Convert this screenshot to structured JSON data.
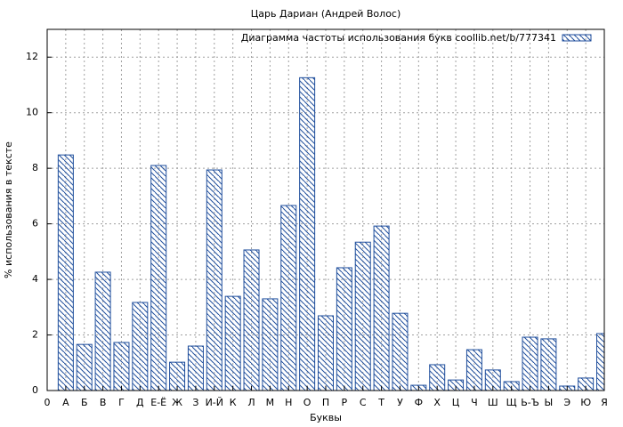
{
  "chart_data": {
    "type": "bar",
    "title": "Царь Дариан (Андрей Волос)",
    "x_label": "Буквы",
    "y_label": "% использования в тексте",
    "categories": [
      "0",
      "А",
      "Б",
      "В",
      "Г",
      "Д",
      "Е-Ё",
      "Ж",
      "З",
      "И-Й",
      "К",
      "Л",
      "М",
      "Н",
      "О",
      "П",
      "Р",
      "С",
      "Т",
      "У",
      "Ф",
      "Х",
      "Ц",
      "Ч",
      "Ш",
      "Щ",
      "Ь-Ъ",
      "Ы",
      "Э",
      "Ю",
      "Я"
    ],
    "series": [
      {
        "name": "Диаграмма частоты использования букв coollib.net/b/777341",
        "color": "#1f4e9c",
        "values": [
          null,
          8.48,
          1.66,
          4.26,
          1.73,
          3.17,
          8.1,
          1.02,
          1.6,
          7.94,
          3.39,
          5.06,
          3.3,
          6.66,
          11.26,
          2.69,
          4.42,
          5.34,
          5.92,
          2.78,
          0.19,
          0.93,
          0.38,
          1.47,
          0.74,
          0.32,
          1.92,
          1.86,
          0.16,
          0.45,
          2.05
        ]
      }
    ],
    "ylim": [
      0,
      13
    ],
    "yticks": [
      0,
      2,
      4,
      6,
      8,
      10,
      12
    ],
    "grid": true,
    "legend": "top-right"
  }
}
